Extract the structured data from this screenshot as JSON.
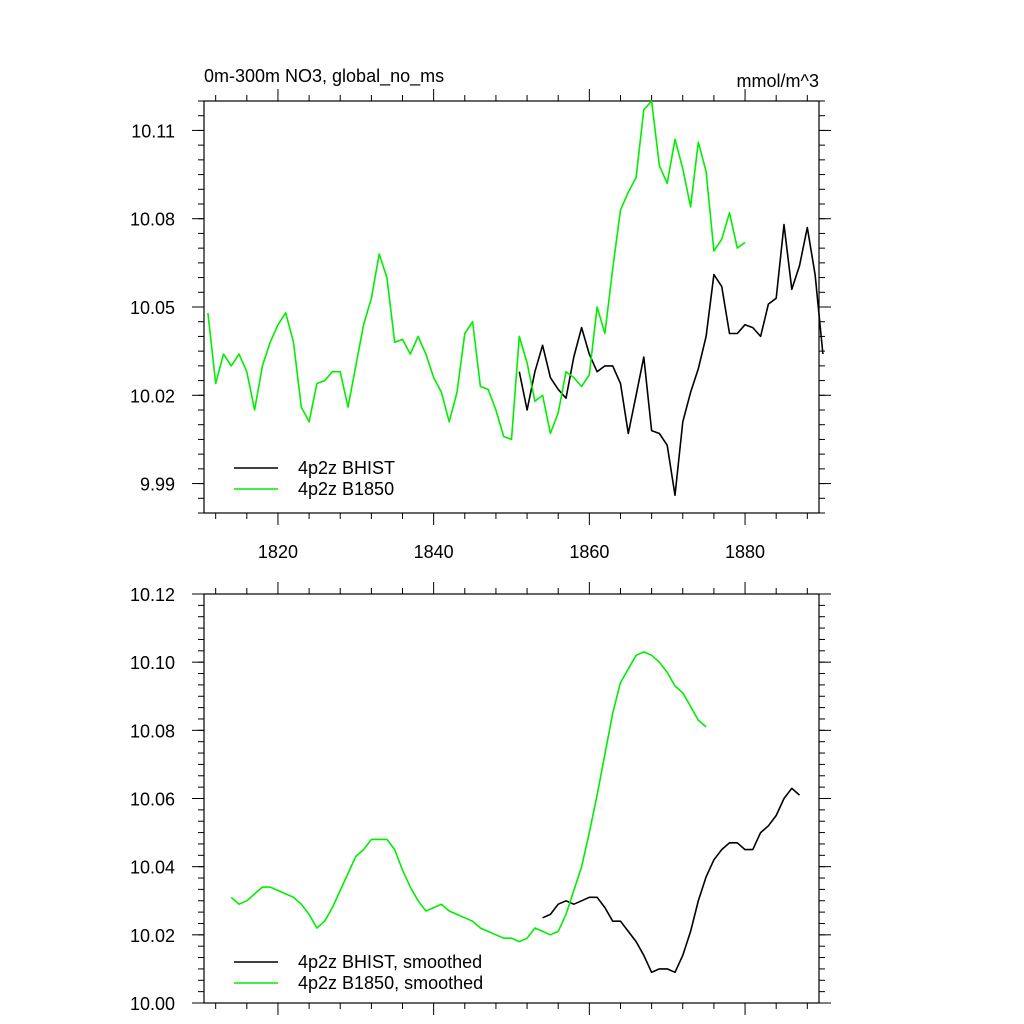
{
  "colors": {
    "bhist": "#000000",
    "b1850": "#00ee00",
    "axis": "#000000"
  },
  "chart_data": [
    {
      "type": "line",
      "title": "0m-300m NO3, global_no_ms",
      "units": "mmol/m^3",
      "xlim": [
        1810.5,
        1889.5
      ],
      "ylim": [
        9.98,
        10.12
      ],
      "yticks": [
        9.99,
        10.02,
        10.05,
        10.08,
        10.11
      ],
      "ytick_labels": [
        "9.99",
        "10.02",
        "10.05",
        "10.08",
        "10.11"
      ],
      "xticks": [
        1820,
        1840,
        1860,
        1880
      ],
      "xtick_labels": [
        "1820",
        "1840",
        "1860",
        "1880"
      ],
      "legend": [
        "4p2z BHIST",
        "4p2z B1850"
      ],
      "series": [
        {
          "name": "4p2z BHIST",
          "color": "#000000",
          "x_start": 1851,
          "values": [
            10.028,
            10.015,
            10.028,
            10.037,
            10.026,
            10.022,
            10.019,
            10.033,
            10.043,
            10.034,
            10.028,
            10.03,
            10.03,
            10.024,
            10.007,
            10.02,
            10.033,
            10.008,
            10.007,
            10.003,
            9.986,
            10.011,
            10.021,
            10.029,
            10.04,
            10.061,
            10.057,
            10.041,
            10.041,
            10.044,
            10.043,
            10.04,
            10.051,
            10.053,
            10.078,
            10.056,
            10.064,
            10.077,
            10.061,
            10.034
          ]
        },
        {
          "name": "4p2z B1850",
          "color": "#00ee00",
          "x_start": 1811,
          "values": [
            10.048,
            10.024,
            10.034,
            10.03,
            10.034,
            10.028,
            10.015,
            10.03,
            10.038,
            10.044,
            10.048,
            10.038,
            10.016,
            10.011,
            10.024,
            10.025,
            10.028,
            10.028,
            10.016,
            10.03,
            10.044,
            10.053,
            10.068,
            10.06,
            10.038,
            10.039,
            10.034,
            10.04,
            10.034,
            10.026,
            10.021,
            10.011,
            10.021,
            10.041,
            10.045,
            10.023,
            10.022,
            10.015,
            10.006,
            10.005,
            10.04,
            10.031,
            10.018,
            10.02,
            10.007,
            10.014,
            10.028,
            10.026,
            10.023,
            10.027,
            10.05,
            10.041,
            10.063,
            10.083,
            10.089,
            10.094,
            10.117,
            10.12,
            10.098,
            10.092,
            10.107,
            10.097,
            10.084,
            10.106,
            10.096,
            10.069,
            10.073,
            10.082,
            10.07,
            10.072
          ]
        }
      ]
    },
    {
      "type": "line",
      "title": "",
      "xlim": [
        1810.5,
        1889.5
      ],
      "ylim": [
        10.0,
        10.12
      ],
      "yticks": [
        10.0,
        10.02,
        10.04,
        10.06,
        10.08,
        10.1,
        10.12
      ],
      "ytick_labels": [
        "10.00",
        "10.02",
        "10.04",
        "10.06",
        "10.08",
        "10.10",
        "10.12"
      ],
      "xticks": [
        1820,
        1840,
        1860,
        1880
      ],
      "legend": [
        "4p2z BHIST, smoothed",
        "4p2z B1850, smoothed"
      ],
      "series": [
        {
          "name": "4p2z BHIST, smoothed",
          "color": "#000000",
          "x_start": 1854,
          "values": [
            10.025,
            10.026,
            10.029,
            10.03,
            10.029,
            10.03,
            10.031,
            10.031,
            10.028,
            10.024,
            10.024,
            10.021,
            10.018,
            10.014,
            10.009,
            10.01,
            10.01,
            10.009,
            10.014,
            10.021,
            10.03,
            10.037,
            10.042,
            10.045,
            10.047,
            10.047,
            10.045,
            10.045,
            10.05,
            10.052,
            10.055,
            10.06,
            10.063,
            10.061
          ]
        },
        {
          "name": "4p2z B1850, smoothed",
          "color": "#00ee00",
          "x_start": 1814,
          "values": [
            10.031,
            10.029,
            10.03,
            10.032,
            10.034,
            10.034,
            10.033,
            10.032,
            10.031,
            10.029,
            10.026,
            10.022,
            10.024,
            10.028,
            10.033,
            10.038,
            10.043,
            10.045,
            10.048,
            10.048,
            10.048,
            10.045,
            10.039,
            10.034,
            10.03,
            10.027,
            10.028,
            10.029,
            10.027,
            10.026,
            10.025,
            10.024,
            10.022,
            10.021,
            10.02,
            10.019,
            10.019,
            10.018,
            10.019,
            10.022,
            10.021,
            10.02,
            10.021,
            10.026,
            10.033,
            10.04,
            10.05,
            10.061,
            10.073,
            10.085,
            10.094,
            10.098,
            10.102,
            10.103,
            10.102,
            10.1,
            10.097,
            10.093,
            10.091,
            10.087,
            10.083,
            10.081
          ]
        }
      ]
    }
  ]
}
